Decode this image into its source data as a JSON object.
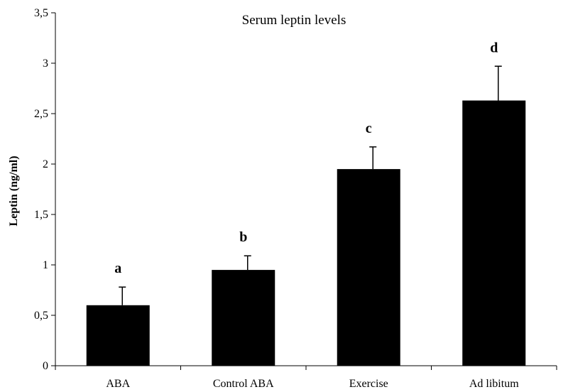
{
  "chart_data": {
    "type": "bar",
    "title": "Serum leptin levels",
    "xlabel": "",
    "ylabel": "Leptin (ng/ml)",
    "ylim": [
      0,
      3.5
    ],
    "yticks": [
      "0",
      "0,5",
      "1",
      "1,5",
      "2",
      "2,5",
      "3",
      "3,5"
    ],
    "ytick_values": [
      0,
      0.5,
      1,
      1.5,
      2,
      2.5,
      3,
      3.5
    ],
    "categories": [
      "ABA",
      "Control ABA",
      "Exercise",
      "Ad libitum"
    ],
    "values": [
      0.6,
      0.95,
      1.95,
      2.63
    ],
    "errors": [
      0.18,
      0.14,
      0.22,
      0.34
    ],
    "significance": [
      "a",
      "b",
      "c",
      "d"
    ],
    "grid": false,
    "legend": "none",
    "bar_color": "#000000"
  }
}
